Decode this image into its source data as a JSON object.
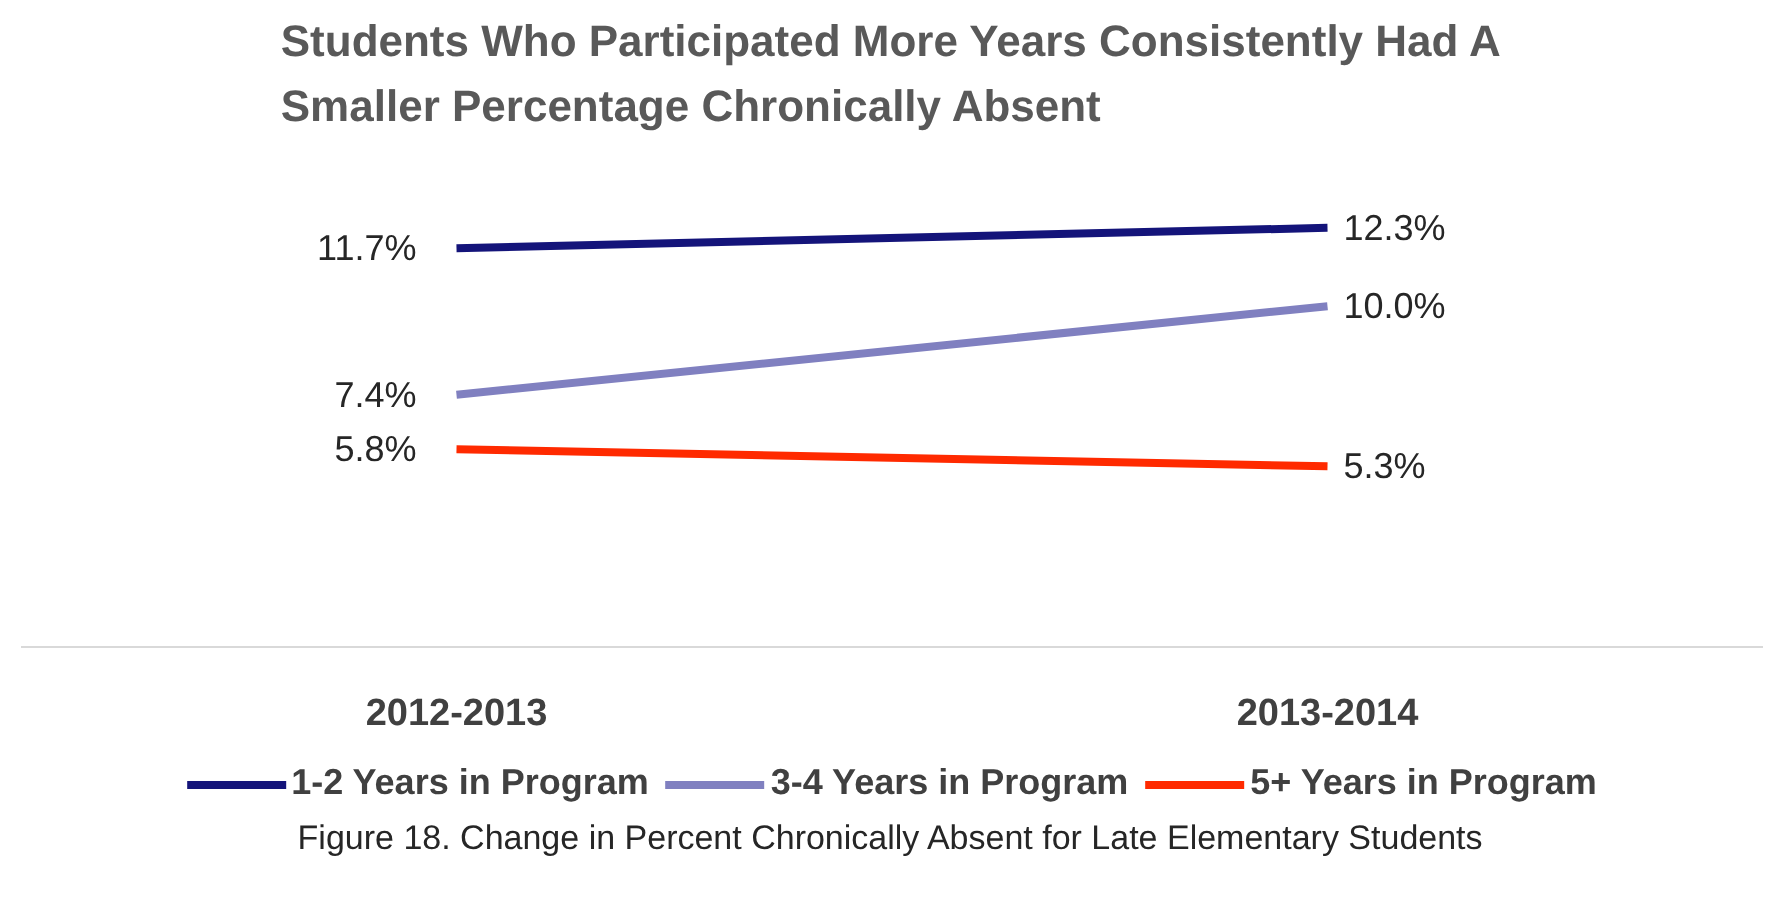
{
  "chart_data": {
    "type": "line",
    "title": "Students Who Participated More Years Consistently Had A\nSmaller Percentage Chronically Absent",
    "categories": [
      "2012-2013",
      "2013-2014"
    ],
    "series": [
      {
        "name": "1-2 Years in Program",
        "color": "#14147a",
        "values": [
          11.7,
          12.3
        ],
        "value_labels": [
          "11.7%",
          "12.3%"
        ]
      },
      {
        "name": "3-4 Years in Program",
        "color": "#8080c0",
        "values": [
          7.4,
          10.0
        ],
        "value_labels": [
          "7.4%",
          "10.0%"
        ]
      },
      {
        "name": "5+ Years in Program",
        "color": "#ff2a00",
        "values": [
          5.8,
          5.3
        ],
        "value_labels": [
          "5.8%",
          "5.3%"
        ]
      }
    ],
    "legend": "bottom",
    "line_style": "solid",
    "annotations": [
      "Figure 18. Change in Percent Chronically Absent for Late Elementary Students"
    ]
  }
}
